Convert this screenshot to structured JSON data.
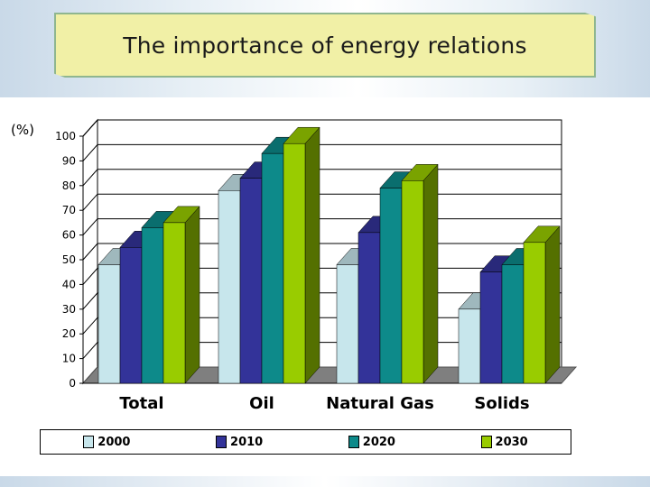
{
  "slide": {
    "title": "The importance of energy relations"
  },
  "colors": {
    "title_bg": "#f1f0a6",
    "title_border": "#8fb68f",
    "floor": "#7f7f7f",
    "series": [
      "#c7e6ec",
      "#333399",
      "#0d8a8a",
      "#99cc00"
    ]
  },
  "chart_data": {
    "type": "bar",
    "ylabel": "(%)",
    "ylim": [
      0,
      100
    ],
    "yticks": [
      0,
      10,
      20,
      30,
      40,
      50,
      60,
      70,
      80,
      90,
      100
    ],
    "grid": true,
    "three_d": true,
    "legend_position": "bottom",
    "categories": [
      "Total",
      "Oil",
      "Natural Gas",
      "Solids"
    ],
    "series": [
      {
        "name": "2000",
        "values": [
          48,
          78,
          48,
          30
        ]
      },
      {
        "name": "2010",
        "values": [
          55,
          83,
          61,
          45
        ]
      },
      {
        "name": "2020",
        "values": [
          63,
          93,
          79,
          48
        ]
      },
      {
        "name": "2030",
        "values": [
          65,
          97,
          82,
          57
        ]
      }
    ]
  }
}
